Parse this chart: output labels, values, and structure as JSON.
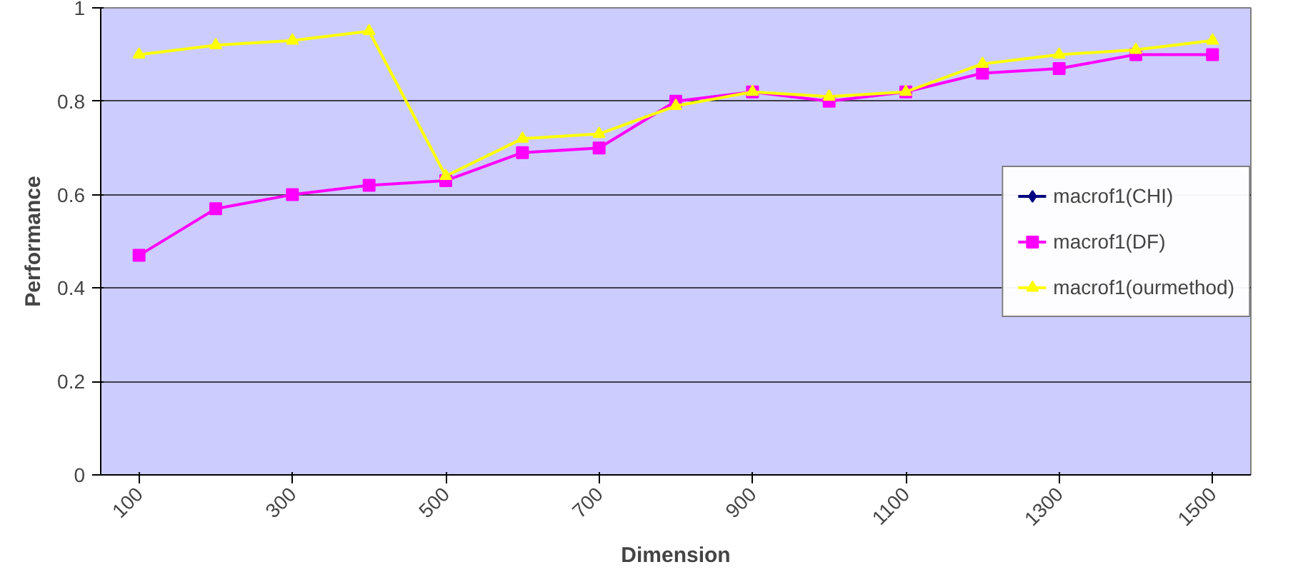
{
  "chart_data": {
    "type": "line",
    "xlabel": "Dimension",
    "ylabel": "Performance",
    "categories": [
      "100",
      null,
      "300",
      null,
      "500",
      null,
      "700",
      null,
      "900",
      null,
      "1100",
      null,
      "1300",
      null,
      "1500"
    ],
    "series": [
      {
        "name": "macrof1(CHI)",
        "color": "#000080",
        "marker": "diamond",
        "values": [
          null,
          null,
          null,
          null,
          null,
          null,
          null,
          null,
          null,
          null,
          null,
          null,
          null,
          null,
          null
        ]
      },
      {
        "name": "macrof1(DF)",
        "color": "#ff00ff",
        "marker": "square",
        "values": [
          0.47,
          0.57,
          0.6,
          0.62,
          0.63,
          0.69,
          0.7,
          0.8,
          0.82,
          0.8,
          0.82,
          0.86,
          0.87,
          0.9,
          0.9
        ]
      },
      {
        "name": "macrof1(ourmethod)",
        "color": "#ffff00",
        "marker": "triangle",
        "values": [
          0.9,
          0.92,
          0.93,
          0.95,
          0.64,
          0.72,
          0.73,
          0.79,
          0.82,
          0.81,
          0.82,
          0.88,
          0.9,
          0.91,
          0.93
        ]
      }
    ],
    "ylim": [
      0,
      1
    ],
    "yticks": [
      0,
      0.2,
      0.4,
      0.6,
      0.8,
      1
    ],
    "grid": "y",
    "legend": "right"
  }
}
